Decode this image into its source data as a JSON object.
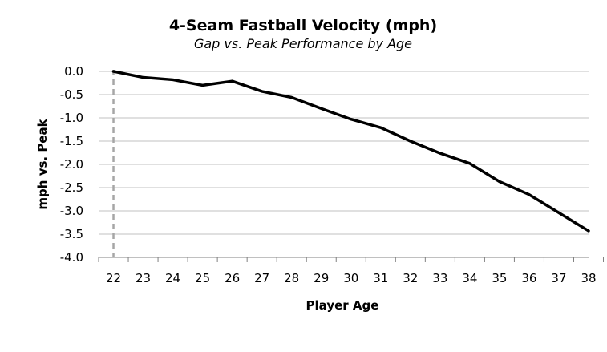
{
  "chart_data": {
    "type": "line",
    "title": "4-Seam Fastball Velocity (mph)",
    "subtitle": "Gap vs. Peak Performance by Age",
    "xlabel": "Player Age",
    "ylabel": "mph vs. Peak",
    "categories": [
      "22",
      "23",
      "24",
      "25",
      "26",
      "27",
      "28",
      "29",
      "30",
      "31",
      "32",
      "33",
      "34",
      "35",
      "36",
      "37",
      "38"
    ],
    "series": [
      {
        "values": [
          0.0,
          -0.13,
          -0.18,
          -0.3,
          -0.21,
          -0.43,
          -0.56,
          -0.8,
          -1.03,
          -1.21,
          -1.5,
          -1.76,
          -1.98,
          -2.37,
          -2.65,
          -3.04,
          -3.43
        ]
      }
    ],
    "ylim": [
      -4.0,
      0.0
    ],
    "y_ticks": [
      "0.0",
      "-0.5",
      "-1.0",
      "-1.5",
      "-2.0",
      "-2.5",
      "-3.0",
      "-3.5",
      "-4.0"
    ],
    "peak_marker_category": "22",
    "grid": true,
    "colors": {
      "line": "#000000",
      "grid": "#c0c0c0",
      "marker_line": "#a6a6a6",
      "axis": "#808080"
    }
  }
}
